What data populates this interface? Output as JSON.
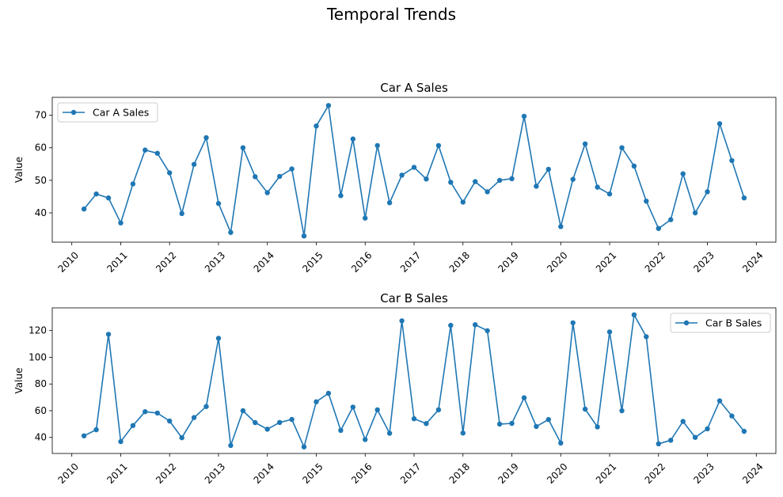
{
  "figure": {
    "title": "Temporal Trends"
  },
  "chart_data": [
    {
      "type": "line",
      "title": "Car A Sales",
      "xlabel": "",
      "ylabel": "Value",
      "xlim": [
        2009.6,
        2024.4
      ],
      "ylim": [
        31,
        75.5
      ],
      "xticks": [
        "2010",
        "2011",
        "2012",
        "2013",
        "2014",
        "2015",
        "2016",
        "2017",
        "2018",
        "2019",
        "2020",
        "2021",
        "2022",
        "2023",
        "2024"
      ],
      "yticks": [
        40,
        50,
        60,
        70
      ],
      "grid": false,
      "legend": "upper-left",
      "color": "#1f77b4",
      "series": [
        {
          "name": "Car A Sales",
          "x": [
            "2010-04",
            "2010-07",
            "2010-10",
            "2011-01",
            "2011-04",
            "2011-07",
            "2011-10",
            "2012-01",
            "2012-04",
            "2012-07",
            "2012-10",
            "2013-01",
            "2013-04",
            "2013-07",
            "2013-10",
            "2014-01",
            "2014-04",
            "2014-07",
            "2014-10",
            "2015-01",
            "2015-04",
            "2015-07",
            "2015-10",
            "2016-01",
            "2016-04",
            "2016-07",
            "2016-10",
            "2017-01",
            "2017-04",
            "2017-07",
            "2017-10",
            "2018-01",
            "2018-04",
            "2018-07",
            "2018-10",
            "2019-01",
            "2019-04",
            "2019-07",
            "2019-10",
            "2020-01",
            "2020-04",
            "2020-07",
            "2020-10",
            "2021-01",
            "2021-04",
            "2021-07",
            "2021-10",
            "2022-01",
            "2022-04",
            "2022-07",
            "2022-10",
            "2023-01",
            "2023-04",
            "2023-07",
            "2023-10"
          ],
          "values": [
            41.2,
            45.8,
            44.6,
            36.9,
            48.9,
            59.3,
            58.3,
            52.3,
            39.8,
            54.9,
            63.1,
            42.9,
            34.0,
            60.0,
            51.1,
            46.2,
            51.2,
            53.5,
            32.9,
            66.7,
            73.0,
            45.3,
            62.7,
            38.4,
            60.7,
            43.1,
            51.6,
            54.0,
            50.4,
            60.7,
            49.4,
            43.3,
            49.6,
            46.5,
            50.0,
            50.5,
            69.7,
            48.2,
            53.4,
            35.8,
            50.3,
            61.2,
            47.9,
            45.8,
            60.0,
            54.4,
            43.6,
            35.2,
            37.9,
            52.0,
            40.0,
            46.5,
            67.4,
            56.1,
            44.6
          ]
        }
      ]
    },
    {
      "type": "line",
      "title": "Car B Sales",
      "xlabel": "",
      "ylabel": "Value",
      "xlim": [
        2009.6,
        2024.4
      ],
      "ylim": [
        28,
        137
      ],
      "xticks": [
        "2010",
        "2011",
        "2012",
        "2013",
        "2014",
        "2015",
        "2016",
        "2017",
        "2018",
        "2019",
        "2020",
        "2021",
        "2022",
        "2023",
        "2024"
      ],
      "yticks": [
        40,
        60,
        80,
        100,
        120
      ],
      "grid": false,
      "legend": "upper-right",
      "color": "#1f77b4",
      "series": [
        {
          "name": "Car B Sales",
          "x": [
            "2010-04",
            "2010-07",
            "2010-10",
            "2011-01",
            "2011-04",
            "2011-07",
            "2011-10",
            "2012-01",
            "2012-04",
            "2012-07",
            "2012-10",
            "2013-01",
            "2013-04",
            "2013-07",
            "2013-10",
            "2014-01",
            "2014-04",
            "2014-07",
            "2014-10",
            "2015-01",
            "2015-04",
            "2015-07",
            "2015-10",
            "2016-01",
            "2016-04",
            "2016-07",
            "2016-10",
            "2017-01",
            "2017-04",
            "2017-07",
            "2017-10",
            "2018-01",
            "2018-04",
            "2018-07",
            "2018-10",
            "2019-01",
            "2019-04",
            "2019-07",
            "2019-10",
            "2020-01",
            "2020-04",
            "2020-07",
            "2020-10",
            "2021-01",
            "2021-04",
            "2021-07",
            "2021-10",
            "2022-01",
            "2022-04",
            "2022-07",
            "2022-10",
            "2023-01",
            "2023-04",
            "2023-07",
            "2023-10"
          ],
          "values": [
            41.2,
            45.8,
            117.2,
            36.9,
            48.9,
            59.3,
            58.3,
            52.3,
            39.8,
            54.9,
            63.1,
            114.2,
            34.0,
            60.0,
            51.1,
            46.2,
            51.2,
            53.5,
            32.9,
            66.7,
            73.0,
            45.3,
            62.7,
            38.4,
            60.7,
            43.1,
            127.3,
            54.0,
            50.4,
            60.7,
            123.9,
            43.3,
            124.4,
            119.9,
            50.0,
            50.5,
            69.7,
            48.2,
            53.4,
            35.8,
            125.8,
            61.2,
            47.9,
            119.0,
            60.0,
            131.8,
            115.4,
            35.2,
            37.9,
            52.0,
            40.0,
            46.5,
            67.4,
            56.1,
            44.6
          ]
        }
      ]
    }
  ]
}
